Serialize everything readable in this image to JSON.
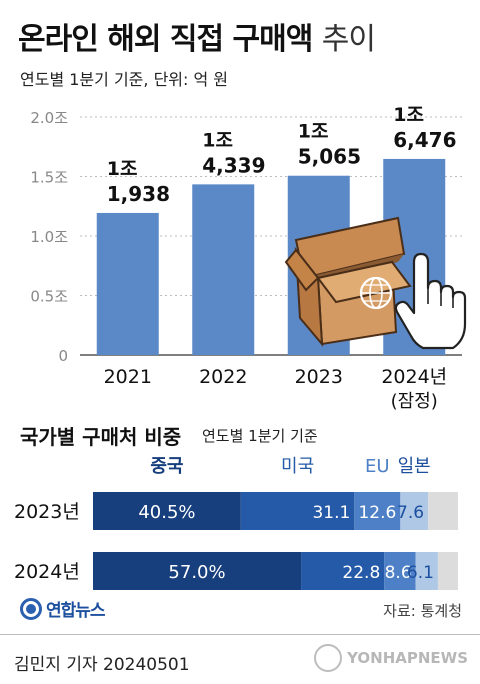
{
  "header": {
    "title_bold": "온라인 해외 직접 구매액",
    "title_light": "추이",
    "subtitle": "연도별 1분기 기준, 단위: 억 원"
  },
  "colors": {
    "bar": "#5b88c7",
    "china": "#173f7e",
    "usa": "#255aa8",
    "eu": "#4d80c6",
    "japan": "#aec8e6",
    "other": "#dcdcdc",
    "bar_label": "#111111"
  },
  "chart_data": [
    {
      "type": "bar",
      "categories": [
        "2021",
        "2022",
        "2023",
        "2024년"
      ],
      "category_sublabels": [
        "",
        "",
        "",
        "(잠정)"
      ],
      "values": [
        11938,
        14339,
        15065,
        16476
      ],
      "value_labels": [
        {
          "top": "1조",
          "bottom": "1,938"
        },
        {
          "top": "1조",
          "bottom": "4,339"
        },
        {
          "top": "1조",
          "bottom": "5,065"
        },
        {
          "top": "1조",
          "bottom": "6,476"
        }
      ],
      "ytick_values": [
        0,
        5000,
        10000,
        15000,
        20000
      ],
      "ytick_labels": [
        "0",
        "0.5조",
        "1.0조",
        "1.5조",
        "2.0조"
      ],
      "ylim": [
        0,
        20000
      ],
      "grid": true
    },
    {
      "type": "bar",
      "orientation": "horizontal-stacked",
      "title": "국가별 구매처 비중",
      "subtitle": "연도별 1분기 기준",
      "categories": [
        "2023년",
        "2024년"
      ],
      "series": [
        {
          "name": "중국",
          "values": [
            40.5,
            57.0
          ],
          "labels": [
            "40.5%",
            "57.0%"
          ]
        },
        {
          "name": "미국",
          "values": [
            31.1,
            22.8
          ],
          "labels": [
            "31.1",
            "22.8"
          ]
        },
        {
          "name": "EU",
          "values": [
            12.6,
            8.6
          ],
          "labels": [
            "12.6",
            "8.6"
          ]
        },
        {
          "name": "일본",
          "values": [
            7.6,
            6.1
          ],
          "labels": [
            "7.6",
            "6.1"
          ]
        },
        {
          "values": [
            8.2,
            5.5
          ],
          "labels": [
            "",
            ""
          ]
        }
      ],
      "xlim": [
        0,
        100
      ]
    }
  ],
  "footer": {
    "logo_text": "연합뉴스",
    "source": "자료: 통계청",
    "credit": "김민지 기자  20240501",
    "watermark": "YONHAPNEWS"
  }
}
